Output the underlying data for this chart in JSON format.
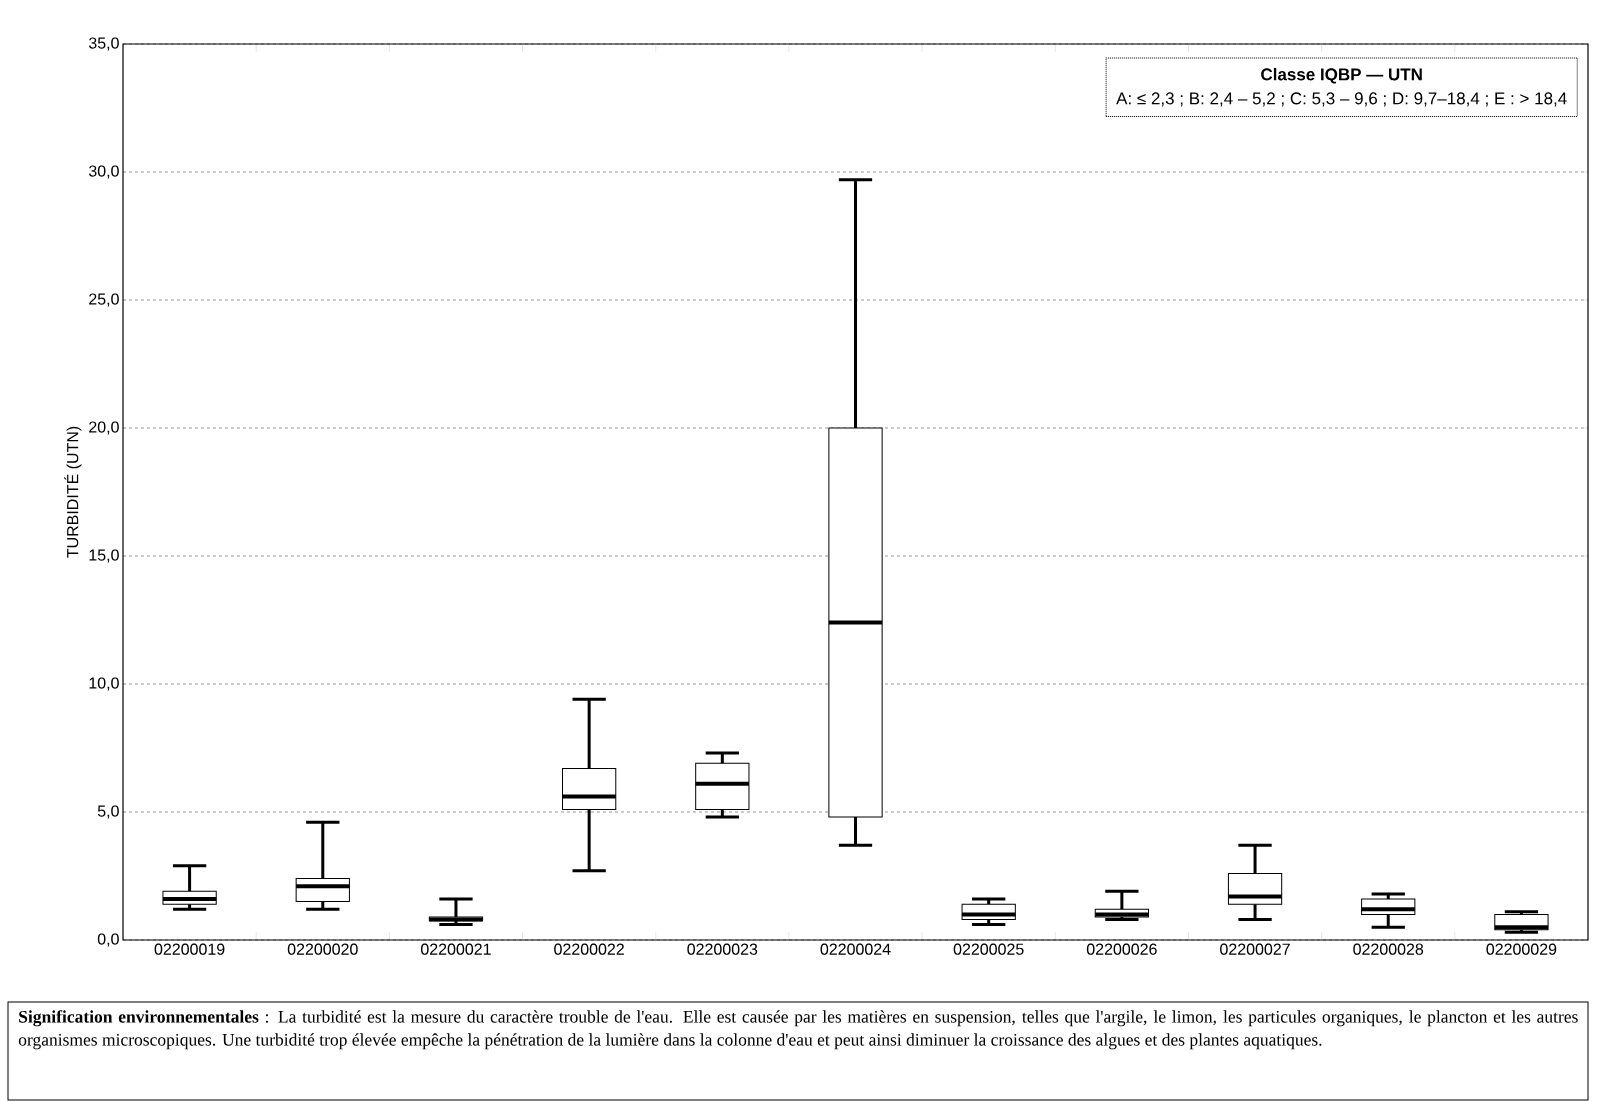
{
  "chart_data": {
    "type": "box",
    "ylabel": "TURBIDITÉ (UTN)",
    "categories": [
      "02200019",
      "02200020",
      "02200021",
      "02200022",
      "02200023",
      "02200024",
      "02200025",
      "02200026",
      "02200027",
      "02200028",
      "02200029"
    ],
    "boxes": [
      {
        "low": 1.2,
        "q1": 1.4,
        "median": 1.6,
        "q3": 1.9,
        "high": 2.9
      },
      {
        "low": 1.2,
        "q1": 1.5,
        "median": 2.1,
        "q3": 2.4,
        "high": 4.6
      },
      {
        "low": 0.6,
        "q1": 0.75,
        "median": 0.8,
        "q3": 0.9,
        "high": 1.6
      },
      {
        "low": 2.7,
        "q1": 5.1,
        "median": 5.6,
        "q3": 6.7,
        "high": 9.4
      },
      {
        "low": 4.8,
        "q1": 5.1,
        "median": 6.1,
        "q3": 6.9,
        "high": 7.3
      },
      {
        "low": 3.7,
        "q1": 4.8,
        "median": 12.4,
        "q3": 20.0,
        "high": 29.7
      },
      {
        "low": 0.6,
        "q1": 0.8,
        "median": 1.0,
        "q3": 1.4,
        "high": 1.6
      },
      {
        "low": 0.8,
        "q1": 0.9,
        "median": 1.0,
        "q3": 1.2,
        "high": 1.9
      },
      {
        "low": 0.8,
        "q1": 1.4,
        "median": 1.7,
        "q3": 2.6,
        "high": 3.7
      },
      {
        "low": 0.5,
        "q1": 1.0,
        "median": 1.2,
        "q3": 1.6,
        "high": 1.8
      },
      {
        "low": 0.3,
        "q1": 0.4,
        "median": 0.5,
        "q3": 1.0,
        "high": 1.1
      }
    ],
    "ylim": [
      0,
      35
    ],
    "yticks": [
      {
        "value": 0,
        "label": "0,0"
      },
      {
        "value": 5,
        "label": "5,0"
      },
      {
        "value": 10,
        "label": "10,0"
      },
      {
        "value": 15,
        "label": "15,0"
      },
      {
        "value": 20,
        "label": "20,0"
      },
      {
        "value": 25,
        "label": "25,0"
      },
      {
        "value": 30,
        "label": "30,0"
      },
      {
        "value": 35,
        "label": "35,0"
      }
    ],
    "grid": "y",
    "annotations": [
      "Classe IQBP — UTN",
      "A: ≤ 2,3 ; B: 2,4 – 5,2 ; C: 5,3 – 9,6 ; D: 9,7–18,4 ; E : > 18,4",
      "**Signification environnementales** : La turbidité est la mesure du caractère trouble de l'eau. Elle est causée par les matières en suspension, telles que l'argile, le limon, les particules organiques, le plancton et les autres organismes microscopiques. Une turbidité trop élevée empêche la pénétration de la lumière dans la colonne d'eau et peut ainsi diminuer la croissance des algues et des plantes aquatiques."
    ]
  }
}
